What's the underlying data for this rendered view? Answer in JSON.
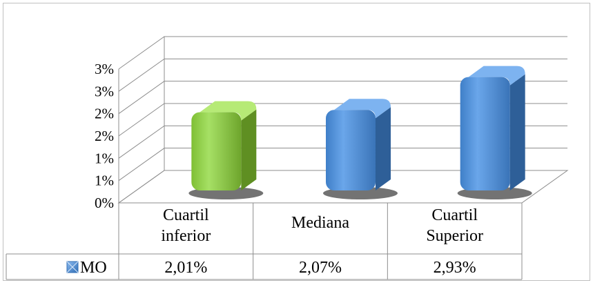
{
  "chart_data": {
    "type": "bar",
    "categories": [
      [
        "Cuartil",
        "inferior"
      ],
      [
        "Mediana"
      ],
      [
        "Cuartil",
        "Superior"
      ]
    ],
    "series": [
      {
        "name": "MO",
        "values": [
          2.01,
          2.07,
          2.93
        ],
        "value_labels": [
          "2,01%",
          "2,07%",
          "2,93%"
        ],
        "colors": [
          "#92d050",
          "#4f91d9",
          "#4f91d9"
        ]
      }
    ],
    "ytick_labels": [
      "0%",
      "1%",
      "1%",
      "2%",
      "2%",
      "3%",
      "3%"
    ],
    "ylim": [
      0,
      3.5
    ],
    "grid": true,
    "legend": "data-table",
    "three_d": true
  }
}
